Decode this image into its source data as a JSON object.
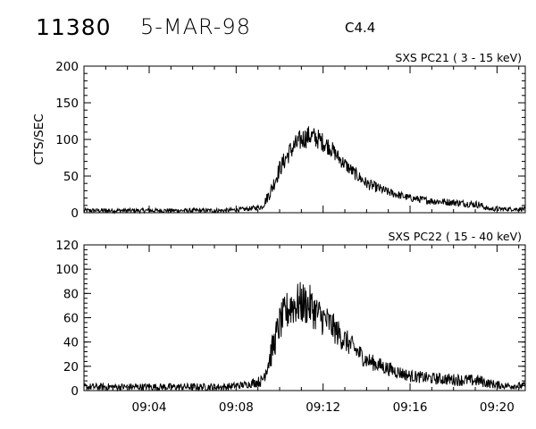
{
  "header": {
    "event_id": "11380",
    "date": "5-MAR-98",
    "flare_class": "C4.4"
  },
  "chart_data": [
    {
      "type": "line",
      "title": "SXS PC21  (  3 - 15 keV)",
      "ylabel": "CTS/SEC",
      "xlabel": "",
      "ylim": [
        0,
        200
      ],
      "yticks": [
        0,
        50,
        100,
        150,
        200
      ],
      "xlim_minutes": [
        0,
        20.3
      ],
      "x_time_origin": "09:01",
      "xticks": [
        "09:04",
        "09:08",
        "09:12",
        "09:16",
        "09:20"
      ],
      "series": [
        {
          "x": [
            "09:01",
            "09:04",
            "09:06",
            "09:07.5",
            "09:08.5",
            "09:09.2",
            "09:09.6",
            "09:10.0",
            "09:10.5",
            "09:11.0",
            "09:11.4",
            "09:11.8",
            "09:12.3",
            "09:12.8",
            "09:13.4",
            "09:14.0",
            "09:15.0",
            "09:16.0",
            "09:17.0",
            "09:18.0",
            "09:19.2",
            "09:19.6",
            "09:20.3"
          ],
          "values": [
            3,
            3,
            3,
            3,
            5,
            8,
            30,
            60,
            85,
            100,
            105,
            100,
            90,
            72,
            55,
            40,
            28,
            20,
            16,
            14,
            11,
            5,
            5
          ],
          "noise": [
            3,
            3,
            3,
            3,
            3,
            4,
            10,
            12,
            14,
            15,
            15,
            14,
            12,
            10,
            9,
            8,
            6,
            5,
            5,
            5,
            5,
            3,
            3
          ]
        }
      ]
    },
    {
      "type": "line",
      "title": "SXS PC22  ( 15 - 40 keV)",
      "ylabel": "",
      "xlabel": "",
      "ylim": [
        0,
        120
      ],
      "yticks": [
        0,
        20,
        40,
        60,
        80,
        100,
        120
      ],
      "xlim_minutes": [
        0,
        20.3
      ],
      "x_time_origin": "09:01",
      "xticks": [
        "09:04",
        "09:08",
        "09:12",
        "09:16",
        "09:20"
      ],
      "series": [
        {
          "x": [
            "09:01",
            "09:04",
            "09:06",
            "09:07.5",
            "09:08.5",
            "09:09.2",
            "09:09.6",
            "09:10.0",
            "09:10.5",
            "09:11.0",
            "09:11.4",
            "09:11.8",
            "09:12.3",
            "09:12.8",
            "09:13.4",
            "09:14.0",
            "09:15.0",
            "09:16.0",
            "09:17.0",
            "09:18.0",
            "09:19.2",
            "09:19.6",
            "09:20.3"
          ],
          "values": [
            3,
            3,
            3,
            3,
            5,
            8,
            30,
            55,
            70,
            72,
            70,
            62,
            55,
            45,
            35,
            25,
            18,
            12,
            10,
            9,
            8,
            6,
            4
          ],
          "noise": [
            3,
            3,
            3,
            3,
            3,
            5,
            12,
            15,
            18,
            18,
            17,
            15,
            13,
            11,
            9,
            7,
            6,
            5,
            5,
            5,
            5,
            4,
            3
          ]
        }
      ]
    }
  ]
}
